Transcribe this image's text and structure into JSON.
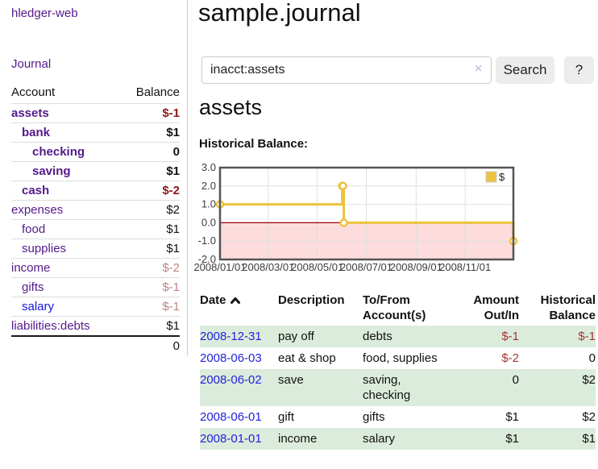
{
  "colors": {
    "link_purple": "#551a8b",
    "link_blue": "#1717dd",
    "negative_strong": "#8b1a1a",
    "negative_soft": "#c08484",
    "negative_register": "#a33333",
    "row_green": "#dcecdc",
    "button_bg": "#ececec",
    "series_yellow": "#edc240"
  },
  "sidebar": {
    "brand": "hledger-web",
    "nav_journal": "Journal",
    "accounts_table": {
      "headers": {
        "account": "Account",
        "balance": "Balance"
      },
      "rows": [
        {
          "name": "assets",
          "indent": 0,
          "bold": true,
          "balance": "$-1",
          "negative": true
        },
        {
          "name": "bank",
          "indent": 1,
          "bold": true,
          "balance": "$1",
          "negative": false
        },
        {
          "name": "checking",
          "indent": 2,
          "bold": true,
          "balance": "0",
          "negative": false
        },
        {
          "name": "saving",
          "indent": 2,
          "bold": true,
          "balance": "$1",
          "negative": false
        },
        {
          "name": "cash",
          "indent": 1,
          "bold": true,
          "balance": "$-2",
          "negative": true
        },
        {
          "name": "expenses",
          "indent": 0,
          "bold": false,
          "balance": "$2",
          "negative": false
        },
        {
          "name": "food",
          "indent": 1,
          "bold": false,
          "balance": "$1",
          "negative": false
        },
        {
          "name": "supplies",
          "indent": 1,
          "bold": false,
          "balance": "$1",
          "negative": false
        },
        {
          "name": "income",
          "indent": 0,
          "bold": false,
          "balance": "$-2",
          "negative": true
        },
        {
          "name": "gifts",
          "indent": 1,
          "bold": false,
          "balance": "$-1",
          "negative": true
        },
        {
          "name": "salary",
          "indent": 1,
          "bold": false,
          "balance": "$-1",
          "negative": true,
          "unvisited": true
        },
        {
          "name": "liabilities:debts",
          "indent": 0,
          "bold": false,
          "balance": "$1",
          "negative": false
        }
      ],
      "total": "0"
    }
  },
  "header": {
    "title": "sample.journal"
  },
  "search": {
    "value": "inacct:assets",
    "clear_icon": "×",
    "search_label": "Search",
    "help_label": "?"
  },
  "main": {
    "account_heading": "assets",
    "chart_label": "Historical Balance:"
  },
  "chart_data": {
    "type": "line",
    "step": "after",
    "title": "Historical Balance:",
    "x_range": [
      "2008-01-01",
      "2008-12-31"
    ],
    "ylim": [
      -2.0,
      3.0
    ],
    "yticks": [
      "3.0",
      "2.0",
      "1.0",
      "0.0",
      "-1.0",
      "-2.0"
    ],
    "ytick_values": [
      3,
      2,
      1,
      0,
      -1,
      -2
    ],
    "xticks": [
      {
        "label": "2008/01/01",
        "date": "2008-01-01"
      },
      {
        "label": "2008/03/01",
        "date": "2008-03-01"
      },
      {
        "label": "2008/05/01",
        "date": "2008-05-01"
      },
      {
        "label": "2008/07/01",
        "date": "2008-07-01"
      },
      {
        "label": "2008/09/01",
        "date": "2008-09-01"
      },
      {
        "label": "2008/11/01",
        "date": "2008-11-01"
      }
    ],
    "series": [
      {
        "name": "$",
        "color": "#edc240",
        "points": [
          {
            "date": "2008-01-01",
            "value": 1
          },
          {
            "date": "2008-06-01",
            "value": 2
          },
          {
            "date": "2008-06-02",
            "value": 2
          },
          {
            "date": "2008-06-03",
            "value": 0
          },
          {
            "date": "2008-12-31",
            "value": -1
          }
        ]
      }
    ],
    "legend": {
      "label": "$",
      "position": "top-right"
    },
    "negative_region_fill": "#fcdcdc",
    "zero_line_color": "#9e0000",
    "grid_color": "#e0e0e0",
    "border_color": "#545454"
  },
  "register": {
    "headers": {
      "date": "Date",
      "description": "Description",
      "accounts": "To/From Account(s)",
      "amount": "Amount Out/In",
      "balance": "Historical Balance"
    },
    "rows": [
      {
        "date": "2008-12-31",
        "description": "pay off",
        "accounts": "debts",
        "amount": "$-1",
        "balance": "$-1"
      },
      {
        "date": "2008-06-03",
        "description": "eat & shop",
        "accounts": "food, supplies",
        "amount": "$-2",
        "balance": "0"
      },
      {
        "date": "2008-06-02",
        "description": "save",
        "accounts": "saving, checking",
        "amount": "0",
        "balance": "$2"
      },
      {
        "date": "2008-06-01",
        "description": "gift",
        "accounts": "gifts",
        "amount": "$1",
        "balance": "$2"
      },
      {
        "date": "2008-01-01",
        "description": "income",
        "accounts": "salary",
        "amount": "$1",
        "balance": "$1"
      }
    ]
  }
}
